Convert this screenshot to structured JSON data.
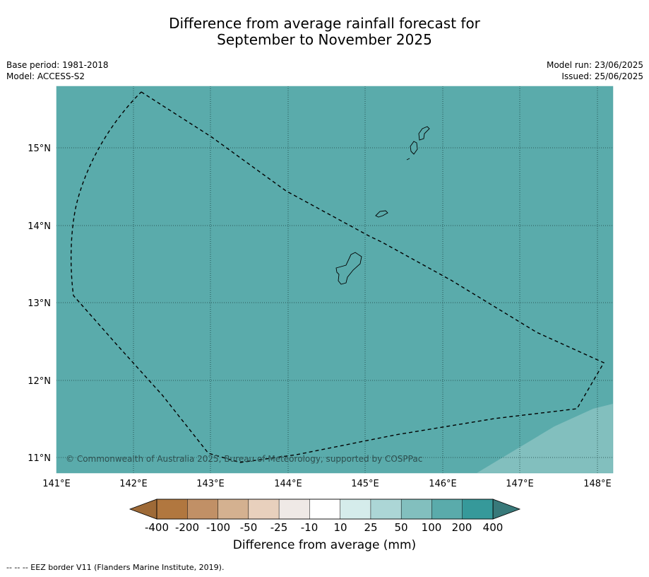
{
  "title": {
    "line1": "Difference from average rainfall forecast for",
    "line2": "September to November 2025"
  },
  "meta_left": {
    "base_period": "Base period: 1981-2018",
    "model": "Model: ACCESS-S2"
  },
  "meta_right": {
    "model_run": "Model run: 23/06/2025",
    "issued": "Issued: 25/06/2025"
  },
  "map": {
    "copyright": "© Commonwealth of Australia 2025, Bureau of Meteorology, supported by COSPPac",
    "lat_ticks": [
      "15°N",
      "14°N",
      "13°N",
      "12°N",
      "11°N"
    ],
    "lon_ticks": [
      "141°E",
      "142°E",
      "143°E",
      "144°E",
      "145°E",
      "146°E",
      "147°E",
      "148°E"
    ],
    "fill_colors": {
      "ocean_category": "#5aabab",
      "lower_category": "#82bfbe"
    }
  },
  "colorbar": {
    "labels": [
      "-400",
      "-200",
      "-100",
      "-50",
      "-25",
      "-10",
      "10",
      "25",
      "50",
      "100",
      "200",
      "400"
    ],
    "colors": [
      "#9e6a37",
      "#b1773f",
      "#c19066",
      "#d4b190",
      "#e8d0bd",
      "#efe9e6",
      "#ffffff",
      "#d5eceb",
      "#acd6d6",
      "#82bfbe",
      "#5aabab",
      "#36999a",
      "#38797a"
    ],
    "label": "Difference from average (mm)"
  },
  "footer": "--  --  -- EEZ border V11 (Flanders Marine Institute, 2019)."
}
